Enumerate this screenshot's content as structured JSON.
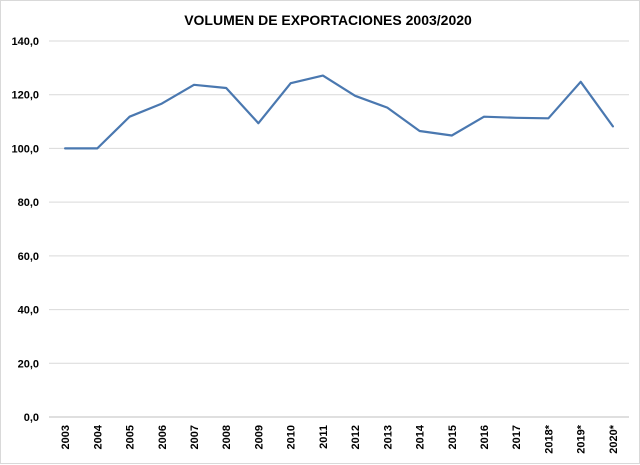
{
  "chart_data": {
    "type": "line",
    "title": "VOLUMEN  DE EXPORTACIONES 2003/2020",
    "xlabel": "",
    "ylabel": "",
    "ylim": [
      0,
      140
    ],
    "yticks": [
      "0,0",
      "20,0",
      "40,0",
      "60,0",
      "80,0",
      "100,0",
      "120,0",
      "140,0"
    ],
    "ytick_values": [
      0,
      20,
      40,
      60,
      80,
      100,
      120,
      140
    ],
    "categories": [
      "2003",
      "2004",
      "2005",
      "2006",
      "2007",
      "2008",
      "2009",
      "2010",
      "2011",
      "2012",
      "2013",
      "2014",
      "2015",
      "2016",
      "2017",
      "2018*",
      "2019*",
      "2020*"
    ],
    "series": [
      {
        "name": "Volumen de exportaciones",
        "color": "#4a78b0",
        "values": [
          100.0,
          100.0,
          111.8,
          116.7,
          123.7,
          122.5,
          109.4,
          124.3,
          127.1,
          119.6,
          115.2,
          106.5,
          104.8,
          111.8,
          111.4,
          111.2,
          124.8,
          108.2
        ]
      }
    ],
    "grid": true,
    "legend": "none"
  }
}
